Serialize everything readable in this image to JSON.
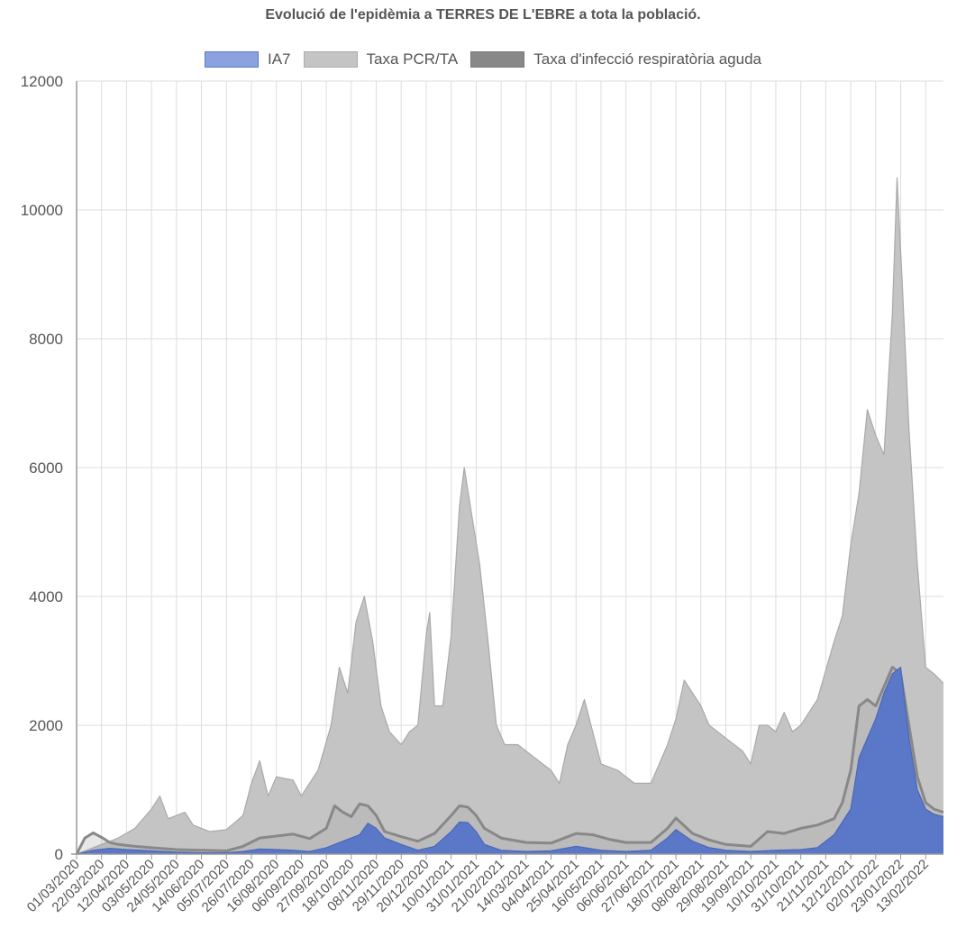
{
  "chart_data": {
    "type": "area",
    "title": "Evolució de l'epidèmia a TERRES DE L'EBRE a tota la població.",
    "ylim": [
      0,
      12000
    ],
    "y_ticks": [
      "0",
      "2000",
      "4000",
      "6000",
      "8000",
      "10000",
      "12000"
    ],
    "grid": true,
    "legend_position": "top",
    "x_start": "01/03/2020",
    "x_end": "28/02/2022",
    "x_tick_labels": [
      "01/03/2020",
      "22/03/2020",
      "12/04/2020",
      "03/05/2020",
      "24/05/2020",
      "14/06/2020",
      "05/07/2020",
      "26/07/2020",
      "16/08/2020",
      "06/09/2020",
      "27/09/2020",
      "18/10/2020",
      "08/11/2020",
      "29/11/2020",
      "20/12/2020",
      "10/01/2021",
      "31/01/2021",
      "21/02/2021",
      "14/03/2021",
      "04/04/2021",
      "25/04/2021",
      "16/05/2021",
      "06/06/2021",
      "27/06/2021",
      "18/07/2021",
      "08/08/2021",
      "29/08/2021",
      "19/09/2021",
      "10/10/2021",
      "31/10/2021",
      "21/11/2021",
      "12/12/2021",
      "02/01/2022",
      "23/01/2022",
      "13/02/2022"
    ],
    "series": [
      {
        "name": "Taxa PCR/TA",
        "color": "#c0c0c0",
        "points": [
          [
            "01/03/2020",
            0
          ],
          [
            "22/03/2020",
            150
          ],
          [
            "05/04/2020",
            250
          ],
          [
            "19/04/2020",
            400
          ],
          [
            "03/05/2020",
            700
          ],
          [
            "10/05/2020",
            900
          ],
          [
            "17/05/2020",
            550
          ],
          [
            "31/05/2020",
            650
          ],
          [
            "07/06/2020",
            450
          ],
          [
            "21/06/2020",
            350
          ],
          [
            "05/07/2020",
            380
          ],
          [
            "19/07/2020",
            600
          ],
          [
            "26/07/2020",
            1100
          ],
          [
            "02/08/2020",
            1450
          ],
          [
            "09/08/2020",
            900
          ],
          [
            "16/08/2020",
            1200
          ],
          [
            "30/08/2020",
            1150
          ],
          [
            "06/09/2020",
            900
          ],
          [
            "20/09/2020",
            1300
          ],
          [
            "01/10/2020",
            2000
          ],
          [
            "08/10/2020",
            2900
          ],
          [
            "15/10/2020",
            2500
          ],
          [
            "22/10/2020",
            3600
          ],
          [
            "29/10/2020",
            4000
          ],
          [
            "05/11/2020",
            3300
          ],
          [
            "12/11/2020",
            2300
          ],
          [
            "19/11/2020",
            1900
          ],
          [
            "29/11/2020",
            1700
          ],
          [
            "06/12/2020",
            1900
          ],
          [
            "13/12/2020",
            2000
          ],
          [
            "20/12/2020",
            3400
          ],
          [
            "23/12/2020",
            3750
          ],
          [
            "27/12/2020",
            2300
          ],
          [
            "03/01/2021",
            2300
          ],
          [
            "10/01/2021",
            3400
          ],
          [
            "17/01/2021",
            5400
          ],
          [
            "21/01/2021",
            6000
          ],
          [
            "27/01/2021",
            5300
          ],
          [
            "03/02/2021",
            4500
          ],
          [
            "10/02/2021",
            3300
          ],
          [
            "17/02/2021",
            2000
          ],
          [
            "24/02/2021",
            1700
          ],
          [
            "07/03/2021",
            1700
          ],
          [
            "21/03/2021",
            1500
          ],
          [
            "04/04/2021",
            1300
          ],
          [
            "11/04/2021",
            1100
          ],
          [
            "18/04/2021",
            1700
          ],
          [
            "25/04/2021",
            2000
          ],
          [
            "02/05/2021",
            2400
          ],
          [
            "09/05/2021",
            1900
          ],
          [
            "16/05/2021",
            1400
          ],
          [
            "30/05/2021",
            1300
          ],
          [
            "13/06/2021",
            1100
          ],
          [
            "27/06/2021",
            1100
          ],
          [
            "11/07/2021",
            1700
          ],
          [
            "18/07/2021",
            2100
          ],
          [
            "25/07/2021",
            2700
          ],
          [
            "01/08/2021",
            2500
          ],
          [
            "08/08/2021",
            2300
          ],
          [
            "15/08/2021",
            2000
          ],
          [
            "29/08/2021",
            1800
          ],
          [
            "12/09/2021",
            1600
          ],
          [
            "19/09/2021",
            1400
          ],
          [
            "26/09/2021",
            2000
          ],
          [
            "03/10/2021",
            2000
          ],
          [
            "10/10/2021",
            1900
          ],
          [
            "17/10/2021",
            2200
          ],
          [
            "24/10/2021",
            1900
          ],
          [
            "31/10/2021",
            2000
          ],
          [
            "14/11/2021",
            2400
          ],
          [
            "28/11/2021",
            3300
          ],
          [
            "05/12/2021",
            3700
          ],
          [
            "12/12/2021",
            4800
          ],
          [
            "19/12/2021",
            5600
          ],
          [
            "26/12/2021",
            6900
          ],
          [
            "02/01/2022",
            6500
          ],
          [
            "09/01/2022",
            6200
          ],
          [
            "16/01/2022",
            8400
          ],
          [
            "20/01/2022",
            10500
          ],
          [
            "24/01/2022",
            9000
          ],
          [
            "30/01/2022",
            6600
          ],
          [
            "06/02/2022",
            4500
          ],
          [
            "13/02/2022",
            2900
          ],
          [
            "20/02/2022",
            2800
          ],
          [
            "28/02/2022",
            2650
          ]
        ]
      },
      {
        "name": "Taxa d'infecció respiratòria aguda",
        "color": "#888888",
        "points": [
          [
            "01/03/2020",
            0
          ],
          [
            "08/03/2020",
            250
          ],
          [
            "15/03/2020",
            330
          ],
          [
            "22/03/2020",
            260
          ],
          [
            "29/03/2020",
            180
          ],
          [
            "05/04/2020",
            150
          ],
          [
            "19/04/2020",
            120
          ],
          [
            "03/05/2020",
            100
          ],
          [
            "24/05/2020",
            70
          ],
          [
            "14/06/2020",
            60
          ],
          [
            "05/07/2020",
            50
          ],
          [
            "19/07/2020",
            120
          ],
          [
            "02/08/2020",
            250
          ],
          [
            "16/08/2020",
            280
          ],
          [
            "30/08/2020",
            310
          ],
          [
            "13/09/2020",
            240
          ],
          [
            "27/09/2020",
            400
          ],
          [
            "04/10/2020",
            750
          ],
          [
            "11/10/2020",
            650
          ],
          [
            "18/10/2020",
            580
          ],
          [
            "25/10/2020",
            780
          ],
          [
            "01/11/2020",
            750
          ],
          [
            "08/11/2020",
            600
          ],
          [
            "15/11/2020",
            350
          ],
          [
            "29/11/2020",
            270
          ],
          [
            "13/12/2020",
            200
          ],
          [
            "27/12/2020",
            320
          ],
          [
            "10/01/2021",
            600
          ],
          [
            "17/01/2021",
            750
          ],
          [
            "24/01/2021",
            730
          ],
          [
            "31/01/2021",
            600
          ],
          [
            "07/02/2021",
            400
          ],
          [
            "21/02/2021",
            250
          ],
          [
            "14/03/2021",
            180
          ],
          [
            "04/04/2021",
            170
          ],
          [
            "25/04/2021",
            320
          ],
          [
            "09/05/2021",
            300
          ],
          [
            "23/05/2021",
            230
          ],
          [
            "06/06/2021",
            180
          ],
          [
            "27/06/2021",
            180
          ],
          [
            "11/07/2021",
            400
          ],
          [
            "18/07/2021",
            560
          ],
          [
            "01/08/2021",
            320
          ],
          [
            "15/08/2021",
            220
          ],
          [
            "29/08/2021",
            150
          ],
          [
            "19/09/2021",
            120
          ],
          [
            "03/10/2021",
            350
          ],
          [
            "17/10/2021",
            320
          ],
          [
            "31/10/2021",
            400
          ],
          [
            "14/11/2021",
            450
          ],
          [
            "28/11/2021",
            550
          ],
          [
            "05/12/2021",
            800
          ],
          [
            "12/12/2021",
            1300
          ],
          [
            "19/12/2021",
            2300
          ],
          [
            "26/12/2021",
            2400
          ],
          [
            "02/01/2022",
            2300
          ],
          [
            "09/01/2022",
            2600
          ],
          [
            "16/01/2022",
            2900
          ],
          [
            "23/01/2022",
            2800
          ],
          [
            "30/01/2022",
            2000
          ],
          [
            "06/02/2022",
            1200
          ],
          [
            "13/02/2022",
            800
          ],
          [
            "20/02/2022",
            700
          ],
          [
            "28/02/2022",
            650
          ]
        ]
      },
      {
        "name": "IA7",
        "color": "#5b78c8",
        "points": [
          [
            "01/03/2020",
            0
          ],
          [
            "15/03/2020",
            60
          ],
          [
            "29/03/2020",
            90
          ],
          [
            "12/04/2020",
            70
          ],
          [
            "03/05/2020",
            50
          ],
          [
            "24/05/2020",
            30
          ],
          [
            "14/06/2020",
            20
          ],
          [
            "05/07/2020",
            20
          ],
          [
            "19/07/2020",
            40
          ],
          [
            "02/08/2020",
            80
          ],
          [
            "16/08/2020",
            70
          ],
          [
            "30/08/2020",
            60
          ],
          [
            "13/09/2020",
            40
          ],
          [
            "27/09/2020",
            100
          ],
          [
            "11/10/2020",
            200
          ],
          [
            "25/10/2020",
            300
          ],
          [
            "01/11/2020",
            480
          ],
          [
            "08/11/2020",
            400
          ],
          [
            "15/11/2020",
            250
          ],
          [
            "29/11/2020",
            150
          ],
          [
            "13/12/2020",
            60
          ],
          [
            "27/12/2020",
            120
          ],
          [
            "10/01/2021",
            350
          ],
          [
            "17/01/2021",
            500
          ],
          [
            "24/01/2021",
            490
          ],
          [
            "31/01/2021",
            350
          ],
          [
            "07/02/2021",
            150
          ],
          [
            "21/02/2021",
            60
          ],
          [
            "14/03/2021",
            40
          ],
          [
            "04/04/2021",
            50
          ],
          [
            "25/04/2021",
            120
          ],
          [
            "16/05/2021",
            60
          ],
          [
            "06/06/2021",
            40
          ],
          [
            "27/06/2021",
            60
          ],
          [
            "11/07/2021",
            250
          ],
          [
            "18/07/2021",
            380
          ],
          [
            "01/08/2021",
            200
          ],
          [
            "15/08/2021",
            100
          ],
          [
            "29/08/2021",
            60
          ],
          [
            "19/09/2021",
            40
          ],
          [
            "10/10/2021",
            60
          ],
          [
            "31/10/2021",
            70
          ],
          [
            "14/11/2021",
            100
          ],
          [
            "28/11/2021",
            300
          ],
          [
            "12/12/2021",
            700
          ],
          [
            "19/12/2021",
            1500
          ],
          [
            "26/12/2021",
            1800
          ],
          [
            "02/01/2022",
            2100
          ],
          [
            "09/01/2022",
            2500
          ],
          [
            "16/01/2022",
            2800
          ],
          [
            "23/01/2022",
            2900
          ],
          [
            "30/01/2022",
            1800
          ],
          [
            "06/02/2022",
            1000
          ],
          [
            "13/02/2022",
            700
          ],
          [
            "20/02/2022",
            620
          ],
          [
            "28/02/2022",
            580
          ]
        ]
      }
    ],
    "legend": [
      {
        "name": "IA7",
        "fill": "#8ca2e0",
        "stroke": "#5b78c8"
      },
      {
        "name": "Taxa PCR/TA",
        "fill": "#c4c4c4",
        "stroke": "#aaaaaa"
      },
      {
        "name": "Taxa d'infecció respiratòria aguda",
        "fill": "#888888",
        "stroke": "#777777"
      }
    ]
  }
}
